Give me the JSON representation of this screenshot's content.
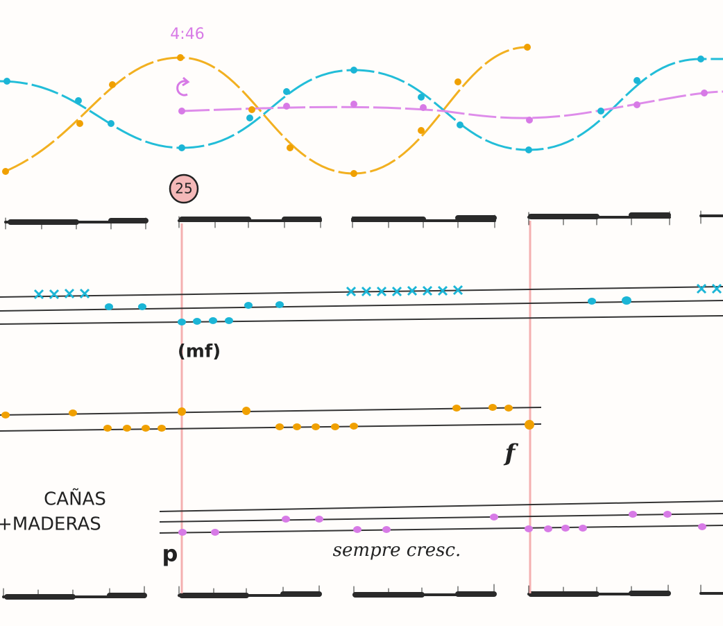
{
  "header": {
    "time": "4:46",
    "rehearsal": "25"
  },
  "staves": [
    {
      "dynamic": "(mf)"
    },
    {
      "dynamic": "f"
    },
    {
      "label_line1": "CAÑAS",
      "label_line2": "+MADERAS",
      "dynamic": "p",
      "expression": "sempre cresc."
    }
  ]
}
